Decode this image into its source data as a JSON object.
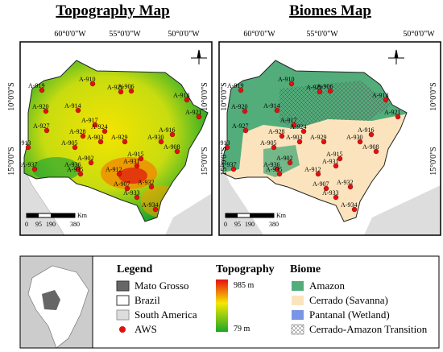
{
  "titles": [
    "Topography Map",
    "Biomes Map"
  ],
  "graticule": {
    "lon": [
      "60°0'0\"W",
      "55°0'0\"W",
      "50°0'0\"W"
    ],
    "lat": [
      "10°0'0\"S",
      "15°0'0\"S"
    ]
  },
  "scale": {
    "ticks": [
      "0",
      "95",
      "190",
      "380"
    ],
    "unit": "Km"
  },
  "stations": [
    "A-919",
    "A-910",
    "A-926",
    "A-906",
    "A-918",
    "A-920",
    "A-914",
    "A-921",
    "A-917",
    "A-927",
    "A-924",
    "A-916",
    "A-928",
    "A-903",
    "A-929",
    "A-930",
    "A-913",
    "A-905",
    "A-915",
    "A-908",
    "A-902",
    "A-931",
    "A-912",
    "A-937",
    "A-936",
    "A-935",
    "A-907",
    "A-932",
    "A-933",
    "A-934"
  ],
  "legend": {
    "title": "Legend",
    "items": [
      "Mato Grosso",
      "Brazil",
      "South America",
      "AWS"
    ]
  },
  "topography": {
    "title": "Topography",
    "max": "985 m",
    "min": "79 m"
  },
  "biome": {
    "title": "Biome",
    "items": [
      "Amazon",
      "Cerrado (Savanna)",
      "Pantanal (Wetland)",
      "Cerrado-Amazon Transition"
    ]
  }
}
